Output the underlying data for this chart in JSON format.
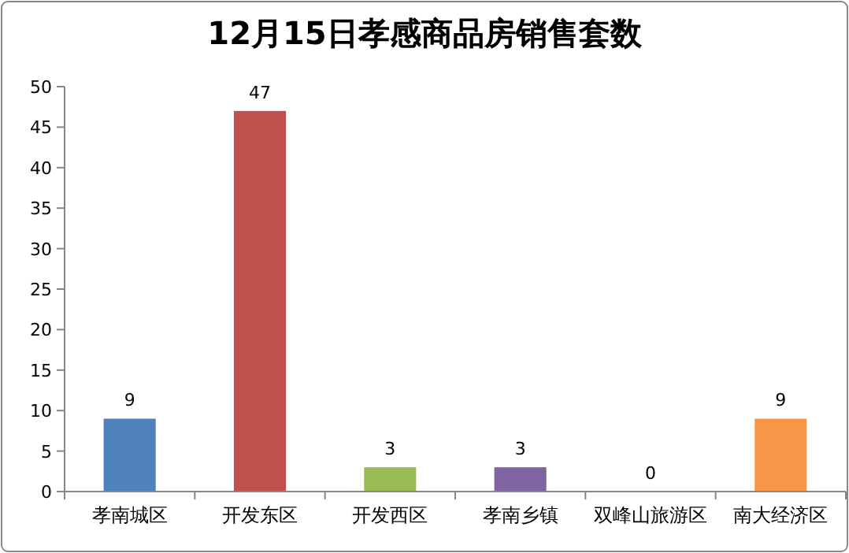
{
  "chart_data": {
    "type": "bar",
    "title": "12月15日孝感商品房销售套数",
    "categories": [
      "孝南城区",
      "开发东区",
      "开发西区",
      "孝南乡镇",
      "双峰山旅游区",
      "南大经济区"
    ],
    "values": [
      9,
      47,
      3,
      3,
      0,
      9
    ],
    "colors": [
      "#4f81bd",
      "#c0504d",
      "#9bbb59",
      "#8064a2",
      "#4bacc6",
      "#f79646"
    ],
    "ylim": [
      0,
      50
    ],
    "yticks": [
      0,
      5,
      10,
      15,
      20,
      25,
      30,
      35,
      40,
      45,
      50
    ],
    "data_labels": true
  }
}
